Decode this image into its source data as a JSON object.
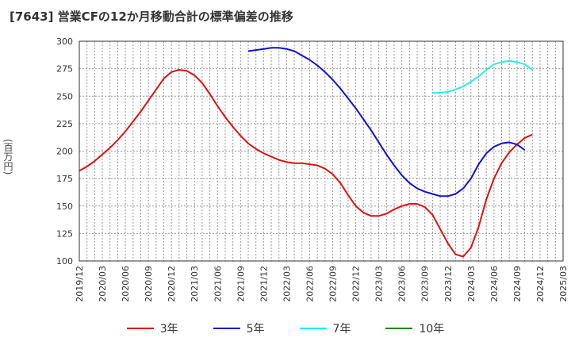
{
  "chart_data": {
    "type": "line",
    "title": "[7643]  営業CFの12か月移動合計の標準偏差の推移",
    "ylabel": "(百万円)",
    "xlabel": "",
    "ylim": [
      100,
      300
    ],
    "y_ticks": [
      100,
      125,
      150,
      175,
      200,
      225,
      250,
      275,
      300
    ],
    "x_tick_labels": [
      "2019/12",
      "2020/03",
      "2020/06",
      "2020/09",
      "2020/12",
      "2021/03",
      "2021/06",
      "2021/09",
      "2021/12",
      "2022/03",
      "2022/06",
      "2022/09",
      "2022/12",
      "2023/03",
      "2023/06",
      "2023/09",
      "2023/12",
      "2024/03",
      "2024/06",
      "2024/09",
      "2024/12",
      "2025/03"
    ],
    "grid": true,
    "legend_position": "bottom",
    "series": [
      {
        "name": "3年",
        "color": "#dd1111",
        "points": [
          [
            "2019/12",
            182
          ],
          [
            "2020/01",
            186
          ],
          [
            "2020/02",
            191
          ],
          [
            "2020/03",
            197
          ],
          [
            "2020/04",
            203
          ],
          [
            "2020/05",
            210
          ],
          [
            "2020/06",
            218
          ],
          [
            "2020/07",
            227
          ],
          [
            "2020/08",
            236
          ],
          [
            "2020/09",
            246
          ],
          [
            "2020/10",
            256
          ],
          [
            "2020/11",
            266
          ],
          [
            "2020/12",
            272
          ],
          [
            "2021/01",
            274
          ],
          [
            "2021/02",
            273
          ],
          [
            "2021/03",
            269
          ],
          [
            "2021/04",
            262
          ],
          [
            "2021/05",
            252
          ],
          [
            "2021/06",
            241
          ],
          [
            "2021/07",
            231
          ],
          [
            "2021/08",
            222
          ],
          [
            "2021/09",
            214
          ],
          [
            "2021/10",
            207
          ],
          [
            "2021/11",
            202
          ],
          [
            "2021/12",
            198
          ],
          [
            "2022/01",
            195
          ],
          [
            "2022/02",
            192
          ],
          [
            "2022/03",
            190
          ],
          [
            "2022/04",
            189
          ],
          [
            "2022/05",
            189
          ],
          [
            "2022/06",
            188
          ],
          [
            "2022/07",
            187
          ],
          [
            "2022/08",
            184
          ],
          [
            "2022/09",
            179
          ],
          [
            "2022/10",
            171
          ],
          [
            "2022/11",
            160
          ],
          [
            "2022/12",
            150
          ],
          [
            "2023/01",
            144
          ],
          [
            "2023/02",
            141
          ],
          [
            "2023/03",
            141
          ],
          [
            "2023/04",
            143
          ],
          [
            "2023/05",
            147
          ],
          [
            "2023/06",
            150
          ],
          [
            "2023/07",
            152
          ],
          [
            "2023/08",
            152
          ],
          [
            "2023/09",
            149
          ],
          [
            "2023/10",
            142
          ],
          [
            "2023/11",
            129
          ],
          [
            "2023/12",
            116
          ],
          [
            "2024/01",
            106
          ],
          [
            "2024/02",
            104
          ],
          [
            "2024/03",
            112
          ],
          [
            "2024/04",
            131
          ],
          [
            "2024/05",
            156
          ],
          [
            "2024/06",
            175
          ],
          [
            "2024/07",
            189
          ],
          [
            "2024/08",
            199
          ],
          [
            "2024/09",
            206
          ],
          [
            "2024/10",
            212
          ],
          [
            "2024/11",
            215
          ]
        ]
      },
      {
        "name": "5年",
        "color": "#1111cc",
        "points": [
          [
            "2021/10",
            291
          ],
          [
            "2021/11",
            292
          ],
          [
            "2021/12",
            293
          ],
          [
            "2022/01",
            294
          ],
          [
            "2022/02",
            294
          ],
          [
            "2022/03",
            293
          ],
          [
            "2022/04",
            291
          ],
          [
            "2022/05",
            287
          ],
          [
            "2022/06",
            283
          ],
          [
            "2022/07",
            278
          ],
          [
            "2022/08",
            272
          ],
          [
            "2022/09",
            265
          ],
          [
            "2022/10",
            257
          ],
          [
            "2022/11",
            248
          ],
          [
            "2022/12",
            239
          ],
          [
            "2023/01",
            229
          ],
          [
            "2023/02",
            219
          ],
          [
            "2023/03",
            208
          ],
          [
            "2023/04",
            197
          ],
          [
            "2023/05",
            187
          ],
          [
            "2023/06",
            178
          ],
          [
            "2023/07",
            171
          ],
          [
            "2023/08",
            166
          ],
          [
            "2023/09",
            163
          ],
          [
            "2023/10",
            161
          ],
          [
            "2023/11",
            159
          ],
          [
            "2023/12",
            159
          ],
          [
            "2024/01",
            161
          ],
          [
            "2024/02",
            166
          ],
          [
            "2024/03",
            175
          ],
          [
            "2024/04",
            188
          ],
          [
            "2024/05",
            198
          ],
          [
            "2024/06",
            204
          ],
          [
            "2024/07",
            207
          ],
          [
            "2024/08",
            208
          ],
          [
            "2024/09",
            206
          ],
          [
            "2024/10",
            201
          ]
        ]
      },
      {
        "name": "7年",
        "color": "#22eeee",
        "points": [
          [
            "2023/10",
            253
          ],
          [
            "2023/11",
            253
          ],
          [
            "2023/12",
            254
          ],
          [
            "2024/01",
            256
          ],
          [
            "2024/02",
            259
          ],
          [
            "2024/03",
            263
          ],
          [
            "2024/04",
            268
          ],
          [
            "2024/05",
            274
          ],
          [
            "2024/06",
            279
          ],
          [
            "2024/07",
            281
          ],
          [
            "2024/08",
            282
          ],
          [
            "2024/09",
            281
          ],
          [
            "2024/10",
            279
          ],
          [
            "2024/11",
            274
          ]
        ]
      },
      {
        "name": "10年",
        "color": "#228822",
        "points": []
      }
    ]
  }
}
